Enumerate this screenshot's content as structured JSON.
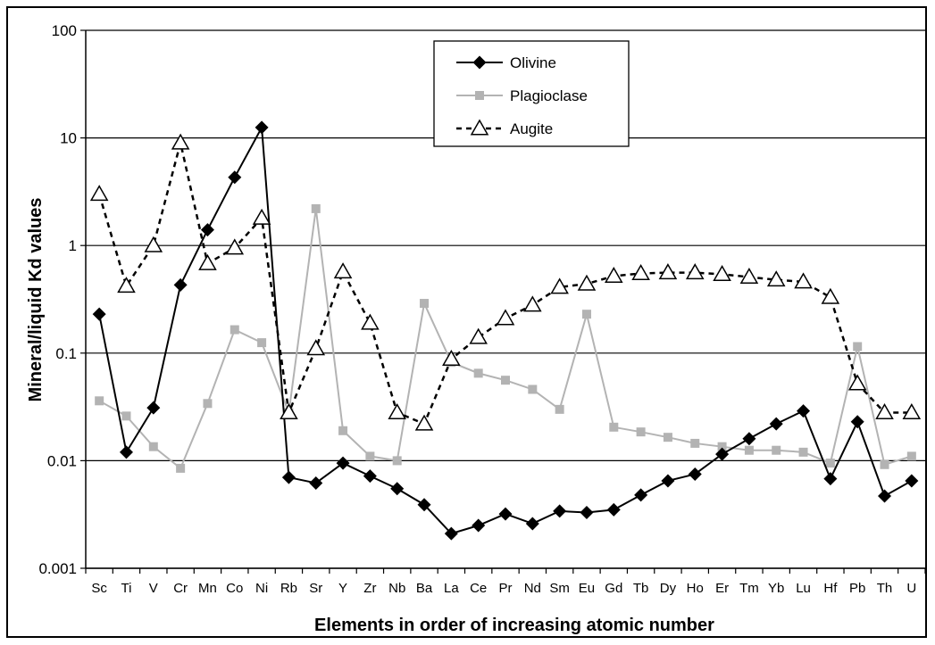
{
  "chart_data": {
    "type": "line",
    "xlabel": "Elements in order of increasing atomic number",
    "ylabel": "Mineral/liquid Kd values",
    "yscale": "log",
    "ylim": [
      0.001,
      100
    ],
    "ytick_labels": [
      "0.001",
      "0.01",
      "0.1",
      "1",
      "10",
      "100"
    ],
    "yticks": [
      0.001,
      0.01,
      0.1,
      1,
      10,
      100
    ],
    "grid": "horizontal",
    "legend_position": "top-center",
    "categories": [
      "Sc",
      "Ti",
      "V",
      "Cr",
      "Mn",
      "Co",
      "Ni",
      "Rb",
      "Sr",
      "Y",
      "Zr",
      "Nb",
      "Ba",
      "La",
      "Ce",
      "Pr",
      "Nd",
      "Sm",
      "Eu",
      "Gd",
      "Tb",
      "Dy",
      "Ho",
      "Er",
      "Tm",
      "Yb",
      "Lu",
      "Hf",
      "Pb",
      "Th",
      "U"
    ],
    "series": [
      {
        "name": "Olivine",
        "color": "#000000",
        "marker": "diamond",
        "line": "solid",
        "values": [
          0.23,
          0.012,
          0.031,
          0.43,
          1.4,
          4.3,
          12.5,
          0.007,
          0.0062,
          0.0095,
          0.0072,
          0.0055,
          0.0039,
          0.0021,
          0.0025,
          0.0032,
          0.0026,
          0.0034,
          0.0033,
          0.0035,
          0.0048,
          0.0065,
          0.0075,
          0.0115,
          0.016,
          0.022,
          0.029,
          0.0068,
          0.023,
          0.0047,
          0.0065
        ]
      },
      {
        "name": "Plagioclase",
        "color": "#b3b3b3",
        "marker": "square",
        "line": "solid",
        "values": [
          0.036,
          0.026,
          0.0135,
          0.0085,
          0.034,
          0.165,
          0.125,
          0.028,
          2.2,
          0.019,
          0.011,
          0.01,
          0.29,
          0.082,
          0.065,
          0.056,
          0.046,
          0.03,
          0.23,
          0.0205,
          0.0185,
          0.0165,
          0.0145,
          0.0135,
          0.0125,
          0.0125,
          0.012,
          0.0095,
          0.115,
          0.0092,
          0.011
        ]
      },
      {
        "name": "Augite",
        "color": "#000000",
        "marker": "triangle-open",
        "line": "dashed",
        "values": [
          3.0,
          0.42,
          1.0,
          9.0,
          0.68,
          0.95,
          1.8,
          0.028,
          0.11,
          0.57,
          0.19,
          0.028,
          0.022,
          0.088,
          0.14,
          0.21,
          0.28,
          0.41,
          0.44,
          0.52,
          0.55,
          0.56,
          0.56,
          0.54,
          0.51,
          0.48,
          0.46,
          0.33,
          0.052,
          0.028,
          0.028
        ]
      }
    ]
  }
}
